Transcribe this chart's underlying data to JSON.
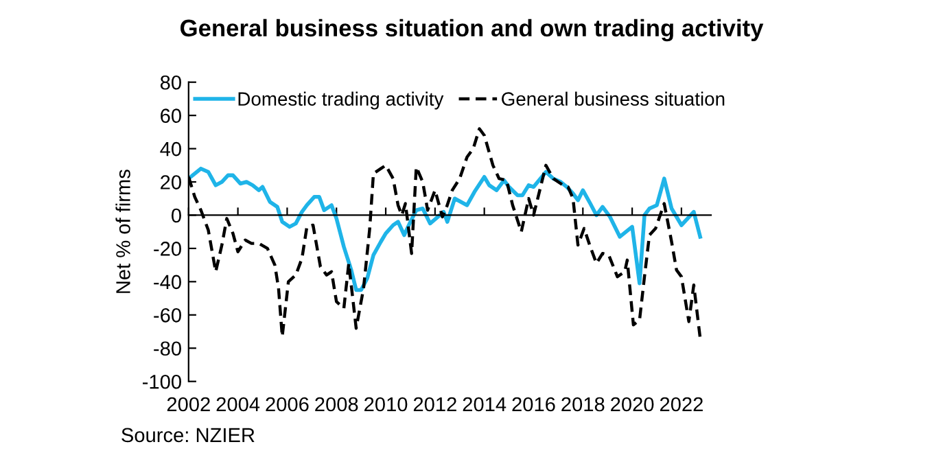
{
  "chart_data": {
    "type": "line",
    "title": "General business situation and own trading activity",
    "ylabel": "Net % of firms",
    "xlim": [
      2002,
      2023.2
    ],
    "xticks": [
      2002,
      2004,
      2006,
      2008,
      2010,
      2012,
      2014,
      2016,
      2018,
      2020,
      2022
    ],
    "ylim": [
      -100,
      80
    ],
    "yticks": [
      -100,
      -80,
      -60,
      -40,
      -20,
      0,
      20,
      40,
      60,
      80
    ],
    "legend": "top",
    "marker": "none",
    "annotations": [
      "Source: NZIER"
    ],
    "series": [
      {
        "name": "Domestic trading activity",
        "color": "#1fb4e8",
        "line_style": "solid",
        "x": [
          2002.0,
          2002.5,
          2002.8,
          2003.1,
          2003.35,
          2003.6,
          2003.8,
          2004.1,
          2004.35,
          2004.6,
          2004.85,
          2005.0,
          2005.3,
          2005.6,
          2005.8,
          2006.1,
          2006.35,
          2006.6,
          2006.8,
          2007.1,
          2007.3,
          2007.5,
          2007.8,
          2008.0,
          2008.3,
          2008.6,
          2008.8,
          2009.0,
          2009.25,
          2009.5,
          2009.8,
          2010.0,
          2010.3,
          2010.5,
          2010.75,
          2011.0,
          2011.24,
          2011.5,
          2011.8,
          2012.2,
          2012.35,
          2012.5,
          2012.8,
          2013.3,
          2013.6,
          2014.0,
          2014.2,
          2014.5,
          2014.8,
          2015.0,
          2015.35,
          2015.55,
          2015.8,
          2016.0,
          2016.5,
          2016.8,
          2017.1,
          2017.35,
          2017.6,
          2017.8,
          2018.0,
          2018.3,
          2018.55,
          2018.8,
          2019.1,
          2019.5,
          2020.0,
          2020.3,
          2020.5,
          2020.7,
          2021.0,
          2021.3,
          2021.6,
          2022.0,
          2022.5,
          2022.76
        ],
        "values": [
          22,
          28,
          26,
          18,
          20,
          24,
          24,
          19,
          20,
          18,
          15,
          17,
          8,
          5,
          -4,
          -7,
          -5,
          2,
          6,
          11,
          11,
          3,
          6,
          -2,
          -19,
          -33,
          -45,
          -45,
          -38,
          -24,
          -16,
          -11,
          -6,
          -4,
          -12,
          -4,
          3,
          4,
          -5,
          0,
          2,
          -4,
          10,
          6,
          14,
          23,
          18,
          15,
          21,
          17,
          12,
          12,
          18,
          17,
          26,
          22,
          20,
          17,
          13,
          9,
          15,
          7,
          0,
          5,
          -1,
          -13,
          -7,
          -41,
          0,
          4,
          6,
          22,
          4,
          -6,
          2,
          -13
        ]
      },
      {
        "name": "General business situation",
        "color": "#000000",
        "line_style": "dashed",
        "x": [
          2002.0,
          2002.25,
          2002.5,
          2002.8,
          2003.1,
          2003.35,
          2003.55,
          2003.8,
          2004.0,
          2004.3,
          2004.55,
          2004.85,
          2005.2,
          2005.5,
          2005.65,
          2005.8,
          2006.05,
          2006.35,
          2006.6,
          2006.8,
          2007.05,
          2007.35,
          2007.6,
          2007.8,
          2008.0,
          2008.3,
          2008.5,
          2008.8,
          2009.1,
          2009.35,
          2009.5,
          2009.8,
          2010.0,
          2010.3,
          2010.5,
          2010.65,
          2010.8,
          2011.05,
          2011.24,
          2011.5,
          2011.7,
          2012.0,
          2012.3,
          2012.45,
          2012.7,
          2013.0,
          2013.3,
          2013.55,
          2013.8,
          2014.0,
          2014.35,
          2014.6,
          2014.9,
          2015.15,
          2015.5,
          2015.8,
          2016.0,
          2016.5,
          2016.8,
          2017.2,
          2017.4,
          2017.6,
          2017.8,
          2018.05,
          2018.3,
          2018.55,
          2018.8,
          2019.05,
          2019.4,
          2019.7,
          2019.8,
          2020.05,
          2020.3,
          2020.5,
          2020.7,
          2020.95,
          2021.3,
          2021.6,
          2021.8,
          2022.0,
          2022.3,
          2022.5,
          2022.76
        ],
        "values": [
          23,
          11,
          3,
          -9,
          -34,
          -18,
          -2,
          -11,
          -22,
          -15,
          -17,
          -17,
          -20,
          -30,
          -44,
          -73,
          -40,
          -36,
          -26,
          -7,
          -6,
          -31,
          -36,
          -34,
          -52,
          -56,
          -29,
          -68,
          -44,
          -8,
          25,
          28,
          30,
          22,
          6,
          0,
          7,
          -23,
          29,
          20,
          3,
          15,
          -1,
          4,
          15,
          22,
          35,
          40,
          52,
          48,
          30,
          22,
          21,
          6,
          -10,
          10,
          0,
          30,
          22,
          18,
          17,
          10,
          -18,
          -8,
          -19,
          -29,
          -23,
          -24,
          -37,
          -34,
          -27,
          -66,
          -63,
          -37,
          -12,
          -8,
          7,
          -16,
          -33,
          -37,
          -64,
          -42,
          -74
        ]
      }
    ]
  }
}
